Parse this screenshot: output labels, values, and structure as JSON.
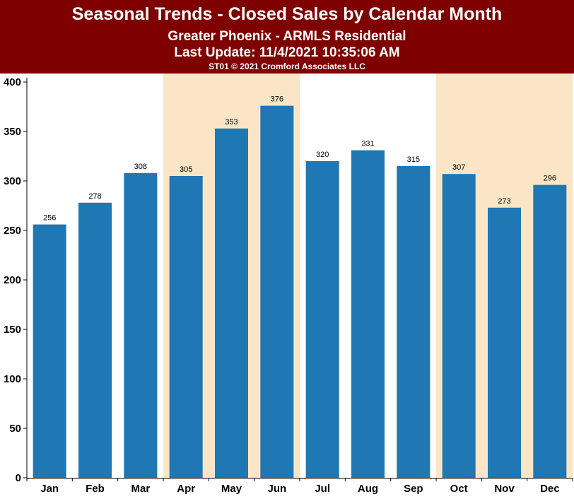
{
  "header": {
    "title": "Seasonal Trends - Closed Sales by Calendar Month",
    "subtitle": "Greater Phoenix - ARMLS Residential",
    "update": "Last Update: 11/4/2021 10:35:06 AM",
    "copyright": "ST01 © 2021 Cromford Associates LLC"
  },
  "colors": {
    "banner": "#7f0000",
    "bar": "#1f77b4",
    "shade": "#fae6c6"
  },
  "chart_data": {
    "type": "bar",
    "categories": [
      "Jan",
      "Feb",
      "Mar",
      "Apr",
      "May",
      "Jun",
      "Jul",
      "Aug",
      "Sep",
      "Oct",
      "Nov",
      "Dec"
    ],
    "values": [
      256,
      278,
      308,
      305,
      353,
      376,
      320,
      331,
      315,
      307,
      273,
      296
    ],
    "ylim": [
      0,
      400
    ],
    "yticks": [
      0,
      50,
      100,
      150,
      200,
      250,
      300,
      350,
      400
    ],
    "shaded_categories": [
      "Apr",
      "May",
      "Jun",
      "Oct",
      "Nov",
      "Dec"
    ],
    "data_labels": true,
    "legend": "none",
    "grid": false
  }
}
